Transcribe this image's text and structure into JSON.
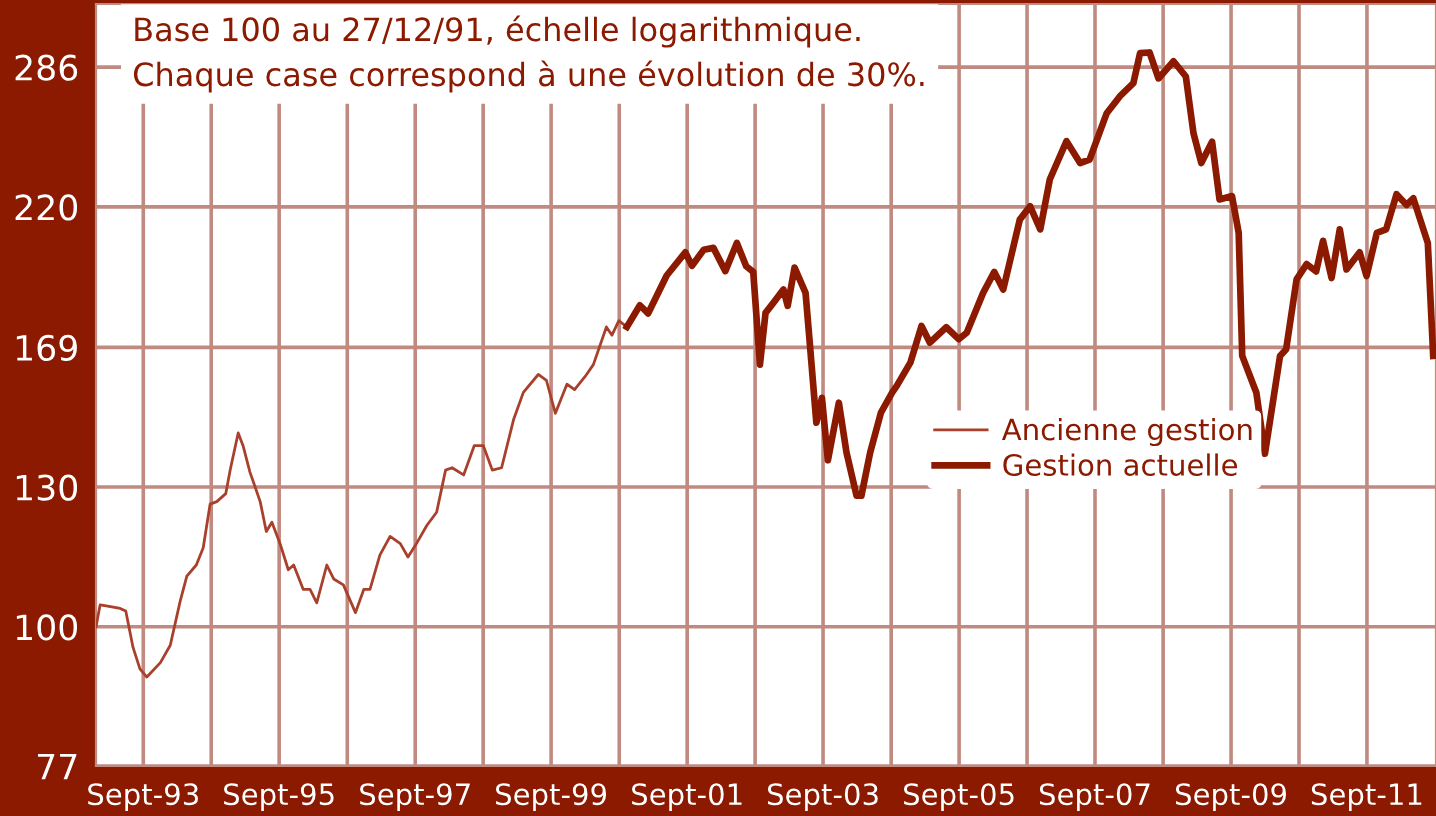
{
  "chart_data": {
    "type": "line",
    "title": "Base 100 au 27/12/91, échelle logarithmique.\nChaque case correspond à une évolution de 30%.",
    "log": "y",
    "grid": true,
    "legend": "center",
    "xlim": [
      "1993-01-04",
      "2012-09-20"
    ],
    "ylim": [
      77,
      322
    ],
    "yticks": [
      77,
      100,
      130,
      169,
      220,
      286
    ],
    "xticks": [
      {
        "value": "1993-09-15",
        "label": "Sept-93"
      },
      {
        "value": "1994-09-15",
        "label": null
      },
      {
        "value": "1995-09-15",
        "label": "Sept-95"
      },
      {
        "value": "1996-09-15",
        "label": null
      },
      {
        "value": "1997-09-15",
        "label": "Sept-97"
      },
      {
        "value": "1998-09-15",
        "label": null
      },
      {
        "value": "1999-09-15",
        "label": "Sept-99"
      },
      {
        "value": "2000-09-15",
        "label": null
      },
      {
        "value": "2001-09-15",
        "label": "Sept-01"
      },
      {
        "value": "2002-09-15",
        "label": null
      },
      {
        "value": "2003-09-15",
        "label": "Sept-03"
      },
      {
        "value": "2004-09-15",
        "label": null
      },
      {
        "value": "2005-09-15",
        "label": "Sept-05"
      },
      {
        "value": "2006-09-15",
        "label": null
      },
      {
        "value": "2007-09-15",
        "label": "Sept-07"
      },
      {
        "value": "2008-09-15",
        "label": null
      },
      {
        "value": "2009-09-15",
        "label": "Sept-09"
      },
      {
        "value": "2010-09-15",
        "label": null
      },
      {
        "value": "2011-09-15",
        "label": "Sept-11"
      }
    ],
    "series": [
      {
        "name": "Ancienne gestion",
        "color": "#a8402c",
        "line_style": "solid",
        "x": [
          "1993-01-04",
          "1993-01-26",
          "1993-02-28",
          "1993-05-14",
          "1993-06-13",
          "1993-07-22",
          "1993-08-28",
          "1993-10-04",
          "1993-12-16",
          "1994-02-07",
          "1994-04-01",
          "1994-05-07",
          "1994-06-27",
          "1994-08-03",
          "1994-09-09",
          "1994-10-15",
          "1994-12-02",
          "1994-12-27",
          "1995-02-07",
          "1995-03-05",
          "1995-04-11",
          "1995-06-05",
          "1995-07-08",
          "1995-08-07",
          "1995-09-20",
          "1995-11-03",
          "1995-12-02",
          "1996-01-22",
          "1996-02-28",
          "1996-04-04",
          "1996-05-28",
          "1996-07-04",
          "1996-08-25",
          "1996-10-29",
          "1996-12-13",
          "1997-01-15",
          "1997-03-09",
          "1997-05-03",
          "1997-06-27",
          "1997-08-07",
          "1997-09-23",
          "1997-11-17",
          "1998-01-08",
          "1998-02-25",
          "1998-04-01",
          "1998-06-02",
          "1998-07-29",
          "1998-09-16",
          "1998-11-03",
          "1998-12-23",
          "1999-02-25",
          "1999-04-19",
          "1999-07-08",
          "1999-08-21",
          "1999-10-08",
          "1999-12-09",
          "2000-01-19",
          "2000-03-16",
          "2000-04-29",
          "2000-07-08",
          "2000-08-07",
          "2000-09-13",
          "2000-10-26"
        ],
        "values": [
          100,
          104.2,
          104,
          103.5,
          103,
          96.2,
          92.4,
          91.0,
          93.5,
          96.6,
          104.9,
          110,
          112.3,
          116,
          125.9,
          126.5,
          128.4,
          134.5,
          143.9,
          140.5,
          133.7,
          126.5,
          119.6,
          121.7,
          116.9,
          111.3,
          112.3,
          107.3,
          107.3,
          104.6,
          112.3,
          109.4,
          108.2,
          102.7,
          107.3,
          107.3,
          114.4,
          118.5,
          116.9,
          114,
          117,
          121,
          124,
          134.2,
          134.8,
          133,
          140.5,
          140.5,
          134.2,
          134.8,
          147.5,
          155.3,
          160.6,
          158.8,
          149.3,
          157.7,
          156.1,
          160,
          163.6,
          175.6,
          172.9,
          177.7,
          175.6
        ]
      },
      {
        "name": "Gestion actuelle",
        "color": "#8b1a00",
        "line_style": "solid",
        "x": [
          "2000-10-26",
          "2001-01-04",
          "2001-02-17",
          "2001-05-28",
          "2001-09-05",
          "2001-10-11",
          "2001-12-13",
          "2002-02-03",
          "2002-04-08",
          "2002-06-09",
          "2002-07-29",
          "2002-09-05",
          "2002-10-11",
          "2002-11-10",
          "2002-12-23",
          "2003-02-14",
          "2003-03-09",
          "2003-04-15",
          "2003-06-13",
          "2003-07-04",
          "2003-08-10",
          "2003-09-09",
          "2003-10-11",
          "2003-12-09",
          "2004-01-19",
          "2004-03-13",
          "2004-04-08",
          "2004-05-25",
          "2004-07-22",
          "2004-09-20",
          "2004-10-15",
          "2004-12-27",
          "2005-02-25",
          "2005-04-11",
          "2005-07-08",
          "2005-09-13",
          "2005-10-26",
          "2006-01-22",
          "2006-03-23",
          "2006-05-10",
          "2006-08-07",
          "2006-10-01",
          "2006-11-25",
          "2007-01-15",
          "2007-04-15",
          "2007-06-27",
          "2007-08-17",
          "2007-11-17",
          "2008-01-26",
          "2008-04-08",
          "2008-05-14",
          "2008-07-04",
          "2008-08-21",
          "2008-11-10",
          "2009-01-15",
          "2009-02-25",
          "2009-04-08",
          "2009-06-05",
          "2009-07-15",
          "2009-09-20",
          "2009-10-26",
          "2009-11-14",
          "2010-01-29",
          "2010-03-16",
          "2010-06-05",
          "2010-07-08",
          "2010-09-02",
          "2010-10-26",
          "2010-12-16",
          "2011-01-22",
          "2011-03-09",
          "2011-04-22",
          "2011-05-28",
          "2011-08-07",
          "2011-09-13",
          "2011-11-07",
          "2011-12-27",
          "2012-02-21",
          "2012-04-15",
          "2012-05-21",
          "2012-08-07",
          "2012-09-05"
        ],
        "values": [
          175.6,
          182.9,
          180.1,
          193.4,
          202,
          197,
          203,
          203.7,
          195,
          205.6,
          196.8,
          194.7,
          163.6,
          180.3,
          183.8,
          188.4,
          182.7,
          196.3,
          187.2,
          171.6,
          146.7,
          153.7,
          136.7,
          152.3,
          138.7,
          127.9,
          127.9,
          138.7,
          149.5,
          155.2,
          157.2,
          164.2,
          175.9,
          170.5,
          175.5,
          171.6,
          173.7,
          187.2,
          194.7,
          188.4,
          214.8,
          220.3,
          210.9,
          231.6,
          248.9,
          238.9,
          240.4,
          262.3,
          270.7,
          277.5,
          293.6,
          294,
          280,
          289.2,
          281,
          252.7,
          238.9,
          248.6,
          223.1,
          224.5,
          209.5,
          166.3,
          155.2,
          138.4,
          166.3,
          168.4,
          192,
          197.6,
          194.9,
          206.4,
          192.5,
          210.9,
          195.6,
          202,
          193.2,
          209.5,
          210.9,
          225.3,
          220.8,
          223.6,
          205.6,
          166.3
        ]
      }
    ]
  }
}
